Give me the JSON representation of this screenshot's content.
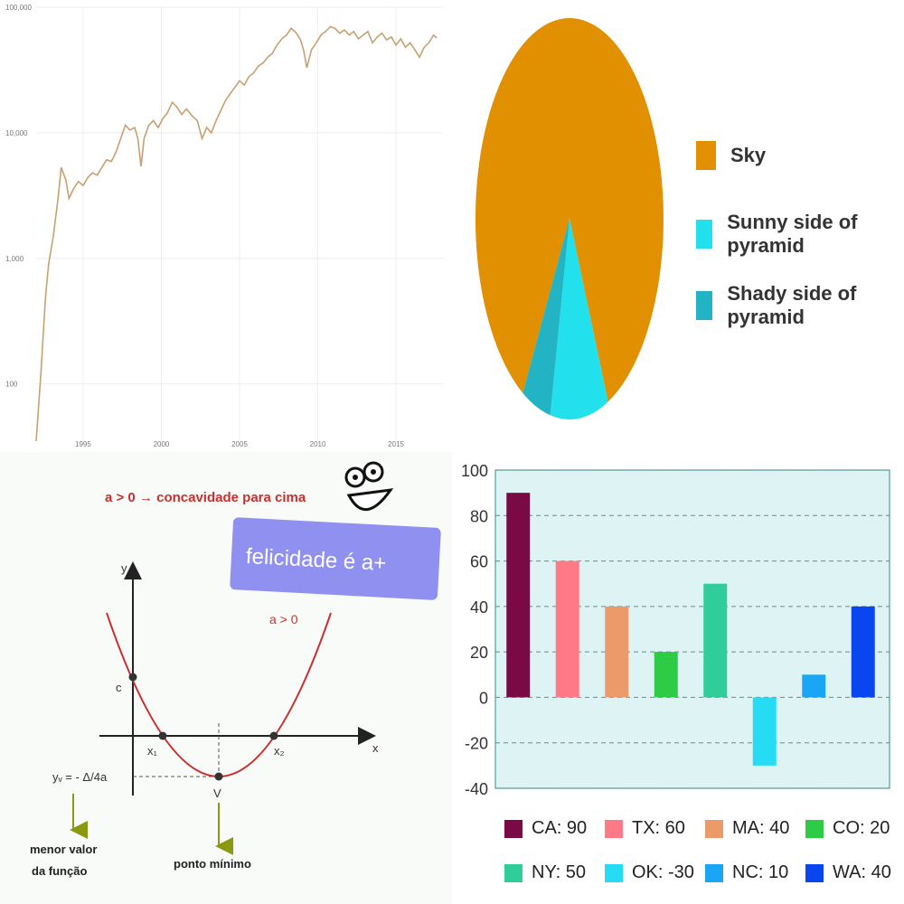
{
  "charts": {
    "line": {
      "type": "line",
      "scale": "log",
      "y_ticks": [
        "100,000",
        "10,000",
        "1,000",
        "100"
      ],
      "y_tick_values": [
        100000,
        10000,
        1000,
        100
      ],
      "x_ticks": [
        "1995",
        "2000",
        "2005",
        "2010",
        "2015"
      ],
      "x_tick_values": [
        1995,
        2000,
        2005,
        2010,
        2015
      ],
      "color": "#c8a070",
      "series": [
        {
          "values": [
            [
              1992.0,
              35
            ],
            [
              1992.3,
              120
            ],
            [
              1992.6,
              500
            ],
            [
              1992.8,
              900
            ],
            [
              1993.1,
              1500
            ],
            [
              1993.4,
              3000
            ],
            [
              1993.6,
              5300
            ],
            [
              1993.9,
              4200
            ],
            [
              1994.1,
              3000
            ],
            [
              1994.4,
              3600
            ],
            [
              1994.7,
              4100
            ],
            [
              1995.0,
              3800
            ],
            [
              1995.3,
              4400
            ],
            [
              1995.6,
              4800
            ],
            [
              1995.9,
              4600
            ],
            [
              1996.2,
              5300
            ],
            [
              1996.5,
              6100
            ],
            [
              1996.8,
              5900
            ],
            [
              1997.1,
              7000
            ],
            [
              1997.4,
              9000
            ],
            [
              1997.7,
              11500
            ],
            [
              1998.0,
              10500
            ],
            [
              1998.3,
              11000
            ],
            [
              1998.5,
              9000
            ],
            [
              1998.7,
              5400
            ],
            [
              1998.9,
              9000
            ],
            [
              1999.2,
              11500
            ],
            [
              1999.5,
              12500
            ],
            [
              1999.8,
              11000
            ],
            [
              2000.1,
              13000
            ],
            [
              2000.4,
              14500
            ],
            [
              2000.7,
              17500
            ],
            [
              2001.0,
              16000
            ],
            [
              2001.3,
              14000
            ],
            [
              2001.6,
              15500
            ],
            [
              2002.0,
              13500
            ],
            [
              2002.3,
              12500
            ],
            [
              2002.6,
              9000
            ],
            [
              2002.9,
              11000
            ],
            [
              2003.2,
              10000
            ],
            [
              2003.5,
              12500
            ],
            [
              2003.8,
              15000
            ],
            [
              2004.1,
              18000
            ],
            [
              2004.4,
              20500
            ],
            [
              2004.7,
              23000
            ],
            [
              2005.0,
              26000
            ],
            [
              2005.3,
              24000
            ],
            [
              2005.6,
              28000
            ],
            [
              2005.9,
              30000
            ],
            [
              2006.2,
              34000
            ],
            [
              2006.5,
              36000
            ],
            [
              2006.8,
              40000
            ],
            [
              2007.1,
              43000
            ],
            [
              2007.4,
              50000
            ],
            [
              2007.7,
              56000
            ],
            [
              2008.0,
              60000
            ],
            [
              2008.3,
              68000
            ],
            [
              2008.6,
              63000
            ],
            [
              2008.9,
              55000
            ],
            [
              2009.1,
              45000
            ],
            [
              2009.3,
              33000
            ],
            [
              2009.6,
              46000
            ],
            [
              2009.9,
              52000
            ],
            [
              2010.2,
              60000
            ],
            [
              2010.5,
              64000
            ],
            [
              2010.8,
              70000
            ],
            [
              2011.1,
              68000
            ],
            [
              2011.4,
              62000
            ],
            [
              2011.7,
              66000
            ],
            [
              2012.0,
              60000
            ],
            [
              2012.3,
              64000
            ],
            [
              2012.6,
              56000
            ],
            [
              2012.9,
              60000
            ],
            [
              2013.2,
              64000
            ],
            [
              2013.5,
              52000
            ],
            [
              2013.8,
              58000
            ],
            [
              2014.1,
              62000
            ],
            [
              2014.4,
              55000
            ],
            [
              2014.7,
              58000
            ],
            [
              2015.0,
              50000
            ],
            [
              2015.3,
              56000
            ],
            [
              2015.6,
              48000
            ],
            [
              2015.9,
              52000
            ],
            [
              2016.2,
              46000
            ],
            [
              2016.5,
              40000
            ],
            [
              2016.8,
              48000
            ],
            [
              2017.1,
              52000
            ],
            [
              2017.4,
              60000
            ],
            [
              2017.6,
              57000
            ]
          ]
        }
      ]
    },
    "pie": {
      "type": "pie",
      "legend_position": "right",
      "slices": [
        {
          "label": "Sky",
          "color": "#e09000",
          "value": 0.85
        },
        {
          "label": "Sunny side of pyramid",
          "color": "#22e0ec",
          "value": 0.1
        },
        {
          "label": "Shady side of pyramid",
          "color": "#22b4c4",
          "value": 0.05
        }
      ]
    },
    "parabola": {
      "type": "diagram",
      "header": "a > 0 → concavidade para cima",
      "sticker": "felicidade é a+",
      "curve_label": "a > 0",
      "axis_x": "x",
      "axis_y": "y",
      "label_c": "c",
      "label_x1": "x₁",
      "label_x2": "x₂",
      "label_yv": "yᵥ = - Δ/4a",
      "label_v": "V",
      "note_left_line1": "menor valor",
      "note_left_line2": "da função",
      "note_right": "ponto mínimo",
      "accent": "#c83030"
    },
    "bar": {
      "type": "bar",
      "ylim": [
        -40,
        100
      ],
      "y_ticks": [
        "100",
        "80",
        "60",
        "40",
        "20",
        "0",
        "-20",
        "-40"
      ],
      "y_tick_values": [
        100,
        80,
        60,
        40,
        20,
        0,
        -20,
        -40
      ],
      "grid": true,
      "legend_position": "bottom",
      "categories": [
        "CA",
        "TX",
        "MA",
        "CO",
        "NY",
        "OK",
        "NC",
        "WA"
      ],
      "values": [
        90,
        60,
        40,
        20,
        50,
        -30,
        10,
        40
      ],
      "colors": [
        "#7a0a46",
        "#ff7a86",
        "#ec9a6a",
        "#2ecb46",
        "#30cc9a",
        "#26dcf4",
        "#1aa6f4",
        "#0a46f0"
      ],
      "legend_labels": [
        "CA: 90",
        "TX: 60",
        "MA: 40",
        "CO: 20",
        "NY: 50",
        "OK: -30",
        "NC: 10",
        "WA: 40"
      ]
    }
  }
}
